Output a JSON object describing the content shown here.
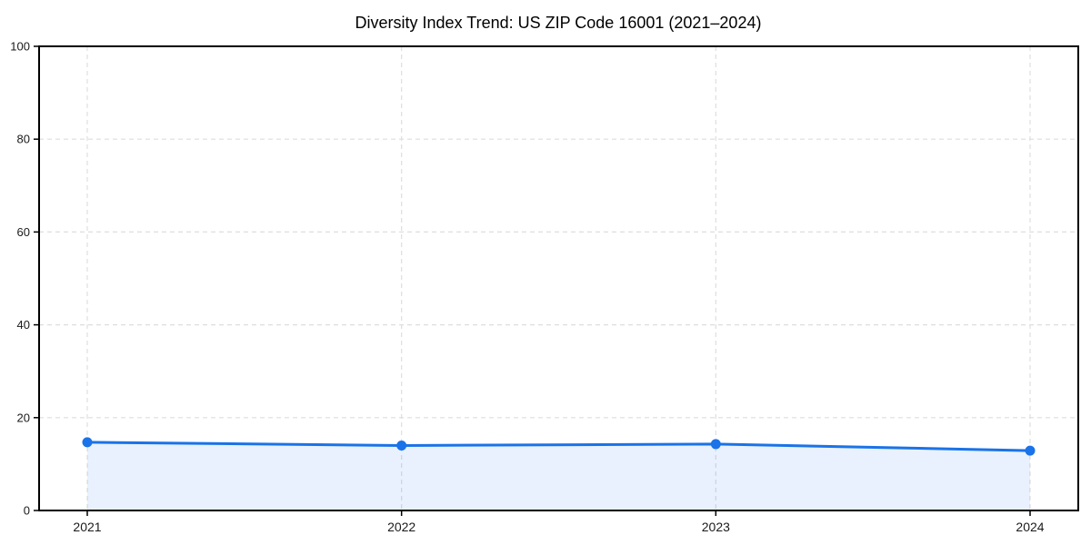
{
  "chart_data": {
    "type": "line",
    "title": "Diversity Index Trend: US ZIP Code 16001 (2021–2024)",
    "x": [
      "2021",
      "2022",
      "2023",
      "2024"
    ],
    "series": [
      {
        "name": "Diversity Index",
        "values": [
          14.7,
          14.0,
          14.3,
          12.9
        ]
      }
    ],
    "ylim": [
      0,
      100
    ],
    "yticks": [
      0,
      20,
      40,
      60,
      80,
      100
    ],
    "xlabel": "",
    "ylabel": "",
    "grid": true,
    "grid_style": "dashed",
    "legend": false,
    "area_fill": true,
    "marker": "circle",
    "colors": {
      "line": "#1a73e8",
      "marker": "#1a73e8",
      "area": "rgba(26,115,232,0.10)",
      "grid": "#dedede",
      "spine": "#000000",
      "tick_text": "#1a1a1a",
      "title_text": "#000000"
    }
  }
}
